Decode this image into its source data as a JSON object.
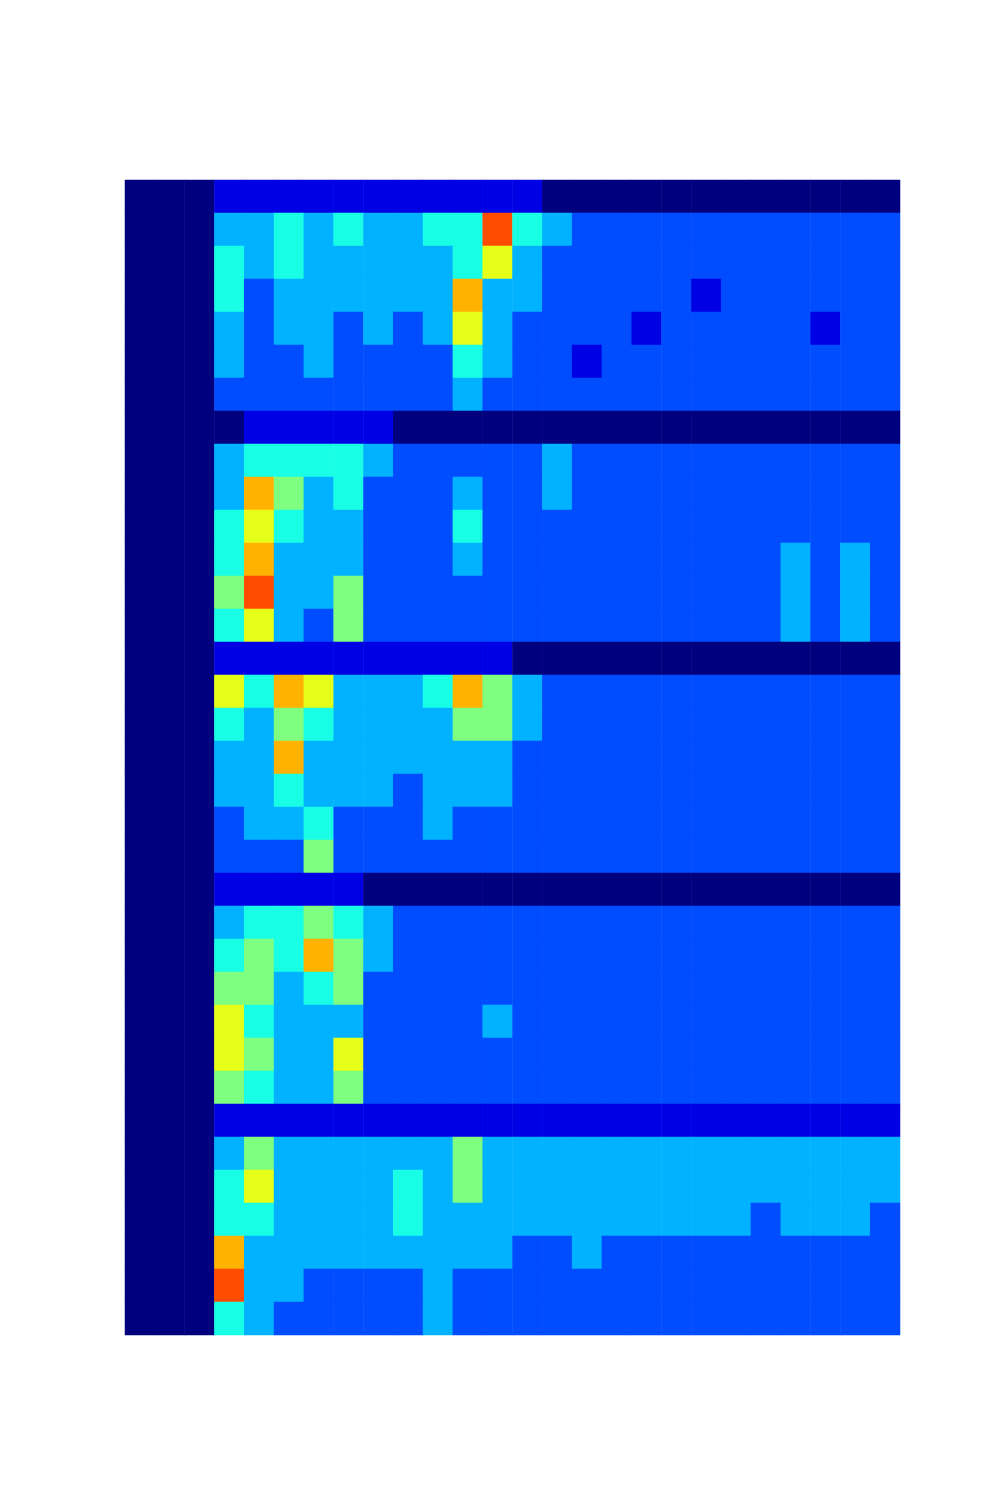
{
  "chart_data": [
    {
      "type": "heatmap",
      "color": "jet",
      "color_range": [
        0,
        10
      ],
      "tick_labels": false,
      "cells": [
        [
          0,
          0,
          0,
          1,
          1,
          1,
          1,
          1,
          1,
          1,
          1,
          1,
          1,
          1,
          0,
          0,
          0,
          0,
          0,
          0,
          0,
          0,
          0,
          0,
          0,
          0
        ],
        [
          0,
          0,
          0,
          3,
          3,
          4,
          3,
          4,
          3,
          3,
          4,
          4,
          8,
          4,
          3,
          2,
          2,
          2,
          2,
          2,
          2,
          2,
          2,
          2,
          2,
          2
        ],
        [
          0,
          0,
          0,
          4,
          3,
          4,
          3,
          3,
          3,
          3,
          3,
          4,
          6,
          3,
          2,
          2,
          2,
          2,
          2,
          2,
          2,
          2,
          2,
          2,
          2,
          2
        ],
        [
          0,
          0,
          0,
          4,
          2,
          3,
          3,
          3,
          3,
          3,
          3,
          7,
          3,
          3,
          2,
          2,
          2,
          2,
          2,
          1,
          2,
          2,
          2,
          2,
          2,
          2
        ],
        [
          0,
          0,
          0,
          3,
          2,
          3,
          3,
          2,
          3,
          2,
          3,
          6,
          3,
          2,
          2,
          2,
          2,
          1,
          2,
          2,
          2,
          2,
          2,
          1,
          2,
          2
        ],
        [
          0,
          0,
          0,
          3,
          2,
          2,
          3,
          2,
          2,
          2,
          2,
          4,
          3,
          2,
          2,
          1,
          2,
          2,
          2,
          2,
          2,
          2,
          2,
          2,
          2,
          2
        ],
        [
          0,
          0,
          0,
          2,
          2,
          2,
          2,
          2,
          2,
          2,
          2,
          3,
          2,
          2,
          2,
          2,
          2,
          2,
          2,
          2,
          2,
          2,
          2,
          2,
          2,
          2
        ]
      ]
    },
    {
      "type": "heatmap",
      "color": "jet",
      "color_range": [
        0,
        10
      ],
      "tick_labels": false,
      "cells": [
        [
          0,
          0,
          0,
          0,
          1,
          1,
          1,
          1,
          1,
          0,
          0,
          0,
          0,
          0,
          0,
          0,
          0,
          0,
          0,
          0,
          0,
          0,
          0,
          0,
          0,
          0
        ],
        [
          0,
          0,
          0,
          3,
          4,
          4,
          4,
          4,
          3,
          2,
          2,
          2,
          2,
          2,
          3,
          2,
          2,
          2,
          2,
          2,
          2,
          2,
          2,
          2,
          2,
          2
        ],
        [
          0,
          0,
          0,
          3,
          7,
          5,
          3,
          4,
          2,
          2,
          2,
          3,
          2,
          2,
          3,
          2,
          2,
          2,
          2,
          2,
          2,
          2,
          2,
          2,
          2,
          2
        ],
        [
          0,
          0,
          0,
          4,
          6,
          4,
          3,
          3,
          2,
          2,
          2,
          4,
          2,
          2,
          2,
          2,
          2,
          2,
          2,
          2,
          2,
          2,
          2,
          2,
          2,
          2
        ],
        [
          0,
          0,
          0,
          4,
          7,
          3,
          3,
          3,
          2,
          2,
          2,
          3,
          2,
          2,
          2,
          2,
          2,
          2,
          2,
          2,
          2,
          2,
          3,
          2,
          3,
          2
        ],
        [
          0,
          0,
          0,
          5,
          8,
          3,
          3,
          5,
          2,
          2,
          2,
          2,
          2,
          2,
          2,
          2,
          2,
          2,
          2,
          2,
          2,
          2,
          3,
          2,
          3,
          2
        ],
        [
          0,
          0,
          0,
          4,
          6,
          3,
          2,
          5,
          2,
          2,
          2,
          2,
          2,
          2,
          2,
          2,
          2,
          2,
          2,
          2,
          2,
          2,
          3,
          2,
          3,
          2
        ]
      ]
    },
    {
      "type": "heatmap",
      "color": "jet",
      "color_range": [
        0,
        10
      ],
      "tick_labels": false,
      "cells": [
        [
          0,
          0,
          0,
          1,
          1,
          1,
          1,
          1,
          1,
          1,
          1,
          1,
          1,
          0,
          0,
          0,
          0,
          0,
          0,
          0,
          0,
          0,
          0,
          0,
          0,
          0
        ],
        [
          0,
          0,
          0,
          6,
          4,
          7,
          6,
          3,
          3,
          3,
          4,
          7,
          5,
          3,
          2,
          2,
          2,
          2,
          2,
          2,
          2,
          2,
          2,
          2,
          2,
          2
        ],
        [
          0,
          0,
          0,
          4,
          3,
          5,
          4,
          3,
          3,
          3,
          3,
          5,
          5,
          3,
          2,
          2,
          2,
          2,
          2,
          2,
          2,
          2,
          2,
          2,
          2,
          2
        ],
        [
          0,
          0,
          0,
          3,
          3,
          7,
          3,
          3,
          3,
          3,
          3,
          3,
          3,
          2,
          2,
          2,
          2,
          2,
          2,
          2,
          2,
          2,
          2,
          2,
          2,
          2
        ],
        [
          0,
          0,
          0,
          3,
          3,
          4,
          3,
          3,
          3,
          2,
          3,
          3,
          3,
          2,
          2,
          2,
          2,
          2,
          2,
          2,
          2,
          2,
          2,
          2,
          2,
          2
        ],
        [
          0,
          0,
          0,
          2,
          3,
          3,
          4,
          2,
          2,
          2,
          3,
          2,
          2,
          2,
          2,
          2,
          2,
          2,
          2,
          2,
          2,
          2,
          2,
          2,
          2,
          2
        ],
        [
          0,
          0,
          0,
          2,
          2,
          2,
          5,
          2,
          2,
          2,
          2,
          2,
          2,
          2,
          2,
          2,
          2,
          2,
          2,
          2,
          2,
          2,
          2,
          2,
          2,
          2
        ]
      ]
    },
    {
      "type": "heatmap",
      "color": "jet",
      "color_range": [
        0,
        10
      ],
      "tick_labels": false,
      "cells": [
        [
          0,
          0,
          0,
          1,
          1,
          1,
          1,
          1,
          0,
          0,
          0,
          0,
          0,
          0,
          0,
          0,
          0,
          0,
          0,
          0,
          0,
          0,
          0,
          0,
          0,
          0
        ],
        [
          0,
          0,
          0,
          3,
          4,
          4,
          5,
          4,
          3,
          2,
          2,
          2,
          2,
          2,
          2,
          2,
          2,
          2,
          2,
          2,
          2,
          2,
          2,
          2,
          2,
          2
        ],
        [
          0,
          0,
          0,
          4,
          5,
          4,
          7,
          5,
          3,
          2,
          2,
          2,
          2,
          2,
          2,
          2,
          2,
          2,
          2,
          2,
          2,
          2,
          2,
          2,
          2,
          2
        ],
        [
          0,
          0,
          0,
          5,
          5,
          3,
          4,
          5,
          2,
          2,
          2,
          2,
          2,
          2,
          2,
          2,
          2,
          2,
          2,
          2,
          2,
          2,
          2,
          2,
          2,
          2
        ],
        [
          0,
          0,
          0,
          6,
          4,
          3,
          3,
          3,
          2,
          2,
          2,
          2,
          3,
          2,
          2,
          2,
          2,
          2,
          2,
          2,
          2,
          2,
          2,
          2,
          2,
          2
        ],
        [
          0,
          0,
          0,
          6,
          5,
          3,
          3,
          6,
          2,
          2,
          2,
          2,
          2,
          2,
          2,
          2,
          2,
          2,
          2,
          2,
          2,
          2,
          2,
          2,
          2,
          2
        ],
        [
          0,
          0,
          0,
          5,
          4,
          3,
          3,
          5,
          2,
          2,
          2,
          2,
          2,
          2,
          2,
          2,
          2,
          2,
          2,
          2,
          2,
          2,
          2,
          2,
          2,
          2
        ]
      ]
    },
    {
      "type": "heatmap",
      "color": "jet",
      "color_range": [
        0,
        10
      ],
      "tick_labels": false,
      "cells": [
        [
          0,
          0,
          0,
          1,
          1,
          1,
          1,
          1,
          1,
          1,
          1,
          1,
          1,
          1,
          1,
          1,
          1,
          1,
          1,
          1,
          1,
          1,
          1,
          1,
          1,
          1
        ],
        [
          0,
          0,
          0,
          3,
          5,
          3,
          3,
          3,
          3,
          3,
          3,
          5,
          3,
          3,
          3,
          3,
          3,
          3,
          3,
          3,
          3,
          3,
          3,
          3,
          3,
          3
        ],
        [
          0,
          0,
          0,
          4,
          6,
          3,
          3,
          3,
          3,
          4,
          3,
          5,
          3,
          3,
          3,
          3,
          3,
          3,
          3,
          3,
          3,
          3,
          3,
          3,
          3,
          3
        ],
        [
          0,
          0,
          0,
          4,
          4,
          3,
          3,
          3,
          3,
          4,
          3,
          3,
          3,
          3,
          3,
          3,
          3,
          3,
          3,
          3,
          3,
          2,
          3,
          3,
          3,
          2
        ],
        [
          0,
          0,
          0,
          7,
          3,
          3,
          3,
          3,
          3,
          3,
          3,
          3,
          3,
          2,
          2,
          3,
          2,
          2,
          2,
          2,
          2,
          2,
          2,
          2,
          2,
          2
        ],
        [
          0,
          0,
          0,
          8,
          3,
          3,
          2,
          2,
          2,
          2,
          3,
          2,
          2,
          2,
          2,
          2,
          2,
          2,
          2,
          2,
          2,
          2,
          2,
          2,
          2,
          2
        ],
        [
          0,
          0,
          0,
          4,
          3,
          2,
          2,
          2,
          2,
          2,
          3,
          2,
          2,
          2,
          2,
          2,
          2,
          2,
          2,
          2,
          2,
          2,
          2,
          2,
          2,
          2
        ]
      ]
    }
  ]
}
